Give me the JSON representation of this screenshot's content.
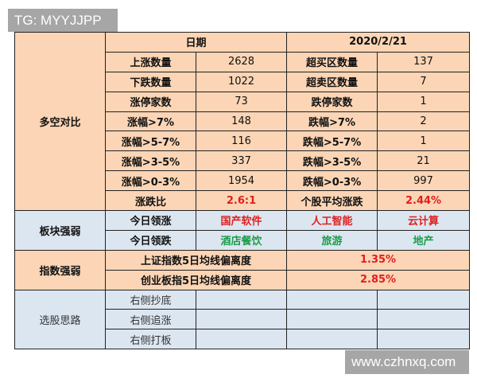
{
  "watermarks": {
    "top": "TG: MYYJJPP",
    "bottom": "www.czhnxq.com"
  },
  "colors": {
    "orange": "#fbd5b5",
    "blue": "#dce6f1",
    "up": "#e0201e",
    "down": "#1a9d4a"
  },
  "header": {
    "date_label": "日期",
    "date_value": "2020/2/21"
  },
  "section1": {
    "label": "多空对比",
    "rows": [
      [
        "上涨数量",
        "2628",
        "超买区数量",
        "137"
      ],
      [
        "下跌数量",
        "1022",
        "超卖区数量",
        "7"
      ],
      [
        "涨停家数",
        "73",
        "跌停家数",
        "1"
      ],
      [
        "涨幅>7%",
        "148",
        "跌幅>7%",
        "2"
      ],
      [
        "涨幅>5-7%",
        "116",
        "跌幅>5-7%",
        "1"
      ],
      [
        "涨幅>3-5%",
        "337",
        "跌幅>3-5%",
        "21"
      ],
      [
        "涨幅>0-3%",
        "1954",
        "跌幅>0-3%",
        "997"
      ],
      [
        "涨跌比",
        "2.6:1",
        "个股平均涨跌",
        "2.44%"
      ]
    ]
  },
  "section2": {
    "label": "板块强弱",
    "rows": [
      [
        "今日领涨",
        "国产软件",
        "人工智能",
        "云计算"
      ],
      [
        "今日领跌",
        "酒店餐饮",
        "旅游",
        "地产"
      ]
    ]
  },
  "section3": {
    "label": "指数强弱",
    "rows": [
      [
        "上证指数5日均线偏离度",
        "1.35%"
      ],
      [
        "创业板指5日均线偏离度",
        "2.85%"
      ]
    ]
  },
  "section4": {
    "label": "选股思路",
    "rows": [
      "右侧抄底",
      "右侧追涨",
      "右侧打板"
    ]
  }
}
